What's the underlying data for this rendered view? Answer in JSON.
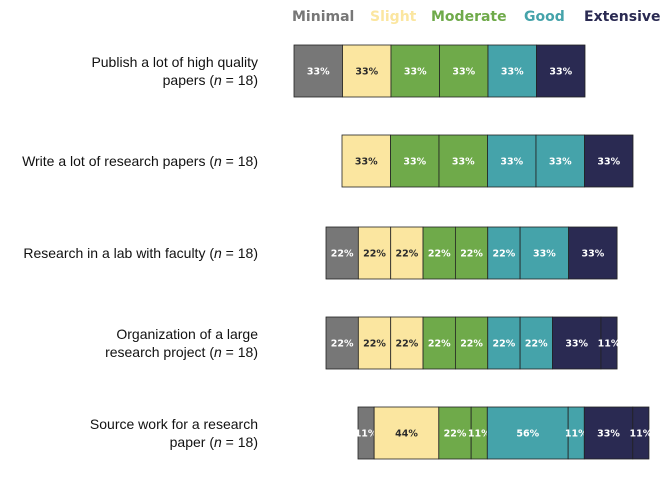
{
  "chart_data": {
    "type": "bar",
    "orientation": "horizontal",
    "stacked": true,
    "legend": {
      "placement": "top",
      "entries": [
        {
          "name": "Minimal",
          "color": "#777777"
        },
        {
          "name": "Slight",
          "color": "#FBE6A0"
        },
        {
          "name": "Moderate",
          "color": "#6FAA4A"
        },
        {
          "name": "Good",
          "color": "#45A3AA"
        },
        {
          "name": "Extensive",
          "color": "#2A2A52"
        }
      ]
    },
    "rows": [
      {
        "label_lines": [
          "Publish a lot of high quality",
          "papers ("
        ],
        "n_label": "n",
        "n_suffix": " = 18)",
        "segments": [
          {
            "cat": 0,
            "label": "33%",
            "value": 1
          },
          {
            "cat": 1,
            "label": "33%",
            "value": 1
          },
          {
            "cat": 2,
            "label": "33%",
            "value": 1
          },
          {
            "cat": 2,
            "label": "33%",
            "value": 1
          },
          {
            "cat": 3,
            "label": "33%",
            "value": 1
          },
          {
            "cat": 4,
            "label": "33%",
            "value": 1
          }
        ]
      },
      {
        "label_lines": [
          "Write a lot of research papers ("
        ],
        "n_label": "n",
        "n_suffix": " = 18)",
        "segments": [
          {
            "cat": 1,
            "label": "33%",
            "value": 1
          },
          {
            "cat": 2,
            "label": "33%",
            "value": 1
          },
          {
            "cat": 2,
            "label": "33%",
            "value": 1
          },
          {
            "cat": 3,
            "label": "33%",
            "value": 1
          },
          {
            "cat": 3,
            "label": "33%",
            "value": 1
          },
          {
            "cat": 4,
            "label": "33%",
            "value": 1
          }
        ]
      },
      {
        "label_lines": [
          "Research in a lab with faculty ("
        ],
        "n_label": "n",
        "n_suffix": " = 18)",
        "segments": [
          {
            "cat": 0,
            "label": "22%",
            "value": 0.667
          },
          {
            "cat": 1,
            "label": "22%",
            "value": 0.667
          },
          {
            "cat": 1,
            "label": "22%",
            "value": 0.667
          },
          {
            "cat": 2,
            "label": "22%",
            "value": 0.667
          },
          {
            "cat": 2,
            "label": "22%",
            "value": 0.667
          },
          {
            "cat": 3,
            "label": "22%",
            "value": 0.667
          },
          {
            "cat": 3,
            "label": "33%",
            "value": 1
          },
          {
            "cat": 4,
            "label": "33%",
            "value": 1
          }
        ]
      },
      {
        "label_lines": [
          "Organization of a large",
          "research project ("
        ],
        "n_label": "n",
        "n_suffix": " = 18)",
        "segments": [
          {
            "cat": 0,
            "label": "22%",
            "value": 0.667
          },
          {
            "cat": 1,
            "label": "22%",
            "value": 0.667
          },
          {
            "cat": 1,
            "label": "22%",
            "value": 0.667
          },
          {
            "cat": 2,
            "label": "22%",
            "value": 0.667
          },
          {
            "cat": 2,
            "label": "22%",
            "value": 0.667
          },
          {
            "cat": 3,
            "label": "22%",
            "value": 0.667
          },
          {
            "cat": 3,
            "label": "22%",
            "value": 0.667
          },
          {
            "cat": 4,
            "label": "33%",
            "value": 1
          },
          {
            "cat": 4,
            "label": "11%",
            "value": 0.333
          }
        ]
      },
      {
        "label_lines": [
          "Source work for a research",
          "paper ("
        ],
        "n_label": "n",
        "n_suffix": " = 18)",
        "segments": [
          {
            "cat": 0,
            "label": "11%",
            "value": 0.333
          },
          {
            "cat": 1,
            "label": "44%",
            "value": 1.333
          },
          {
            "cat": 2,
            "label": "22%",
            "value": 0.667
          },
          {
            "cat": 2,
            "label": "11%",
            "value": 0.333
          },
          {
            "cat": 3,
            "label": "56%",
            "value": 1.667
          },
          {
            "cat": 3,
            "label": "11%",
            "value": 0.333
          },
          {
            "cat": 4,
            "label": "33%",
            "value": 1
          },
          {
            "cat": 4,
            "label": "11%",
            "value": 0.333
          }
        ]
      }
    ]
  }
}
